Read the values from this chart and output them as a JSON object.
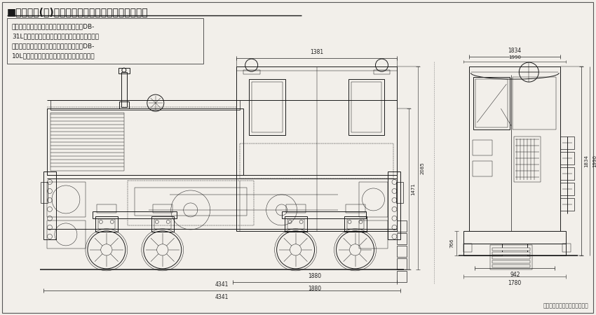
{
  "title": "■大東糖業(株)向け１０ｔディーゼル機関車組立図",
  "title_fontsize": 11,
  "description_lines": [
    "この組立図の２号機では、エンジンが三菱DB-",
    "31Lとなっているが、加藤製作所としての最終製",
    "造となった大東糖業株５号機では、三菱６DB-",
    "10Lディーゼルエンジンへと変更されている。"
  ],
  "bg_color": "#f2efea",
  "line_color": "#1a1a1a",
  "dim_color": "#222222",
  "border_color": "#444444",
  "dim_labels": {
    "side_width_top": "1381",
    "side_height": "1471",
    "side_height2": "2085",
    "side_total": "4341",
    "side_total2": "1880",
    "front_width": "942",
    "front_width2": "1780",
    "front_height1": "1834",
    "front_height2": "1990"
  },
  "source_note": "「加藤製作所機関車図鑑」より"
}
